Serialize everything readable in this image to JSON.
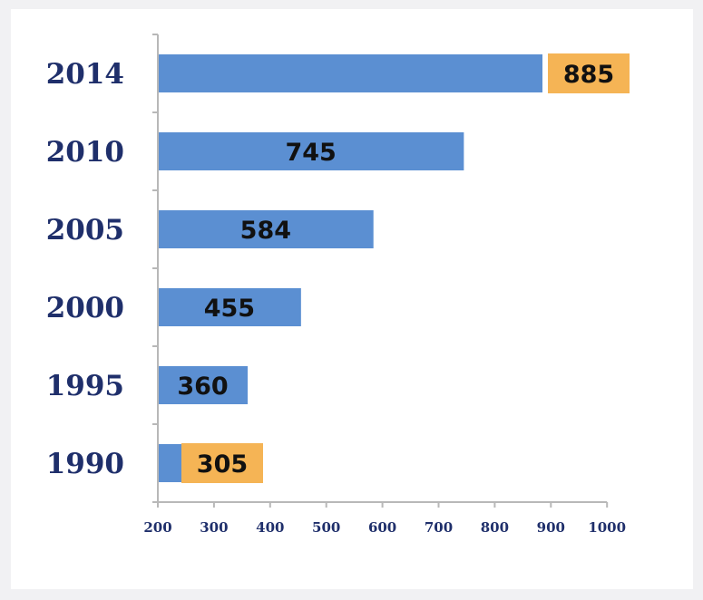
{
  "chart_data": {
    "type": "bar",
    "orientation": "horizontal",
    "categories": [
      "2014",
      "2010",
      "2005",
      "2000",
      "1995",
      "1990"
    ],
    "values": [
      885,
      745,
      584,
      455,
      360,
      305
    ],
    "value_labels": [
      "885",
      "745",
      "584",
      "455",
      "360",
      "305"
    ],
    "highlighted": [
      true,
      false,
      false,
      false,
      false,
      true
    ],
    "xlim": [
      200,
      1000
    ],
    "xticks": [
      "200",
      "300",
      "400",
      "500",
      "600",
      "700",
      "800",
      "900",
      "1000"
    ],
    "title": "",
    "xlabel": "",
    "ylabel": "",
    "grid": false,
    "colors": {
      "bar": "#5b8fd2",
      "highlight": "#f5b455",
      "category_text": "#1f2f6b",
      "value_text": "#111111",
      "axis": "#b8b8b8"
    }
  }
}
